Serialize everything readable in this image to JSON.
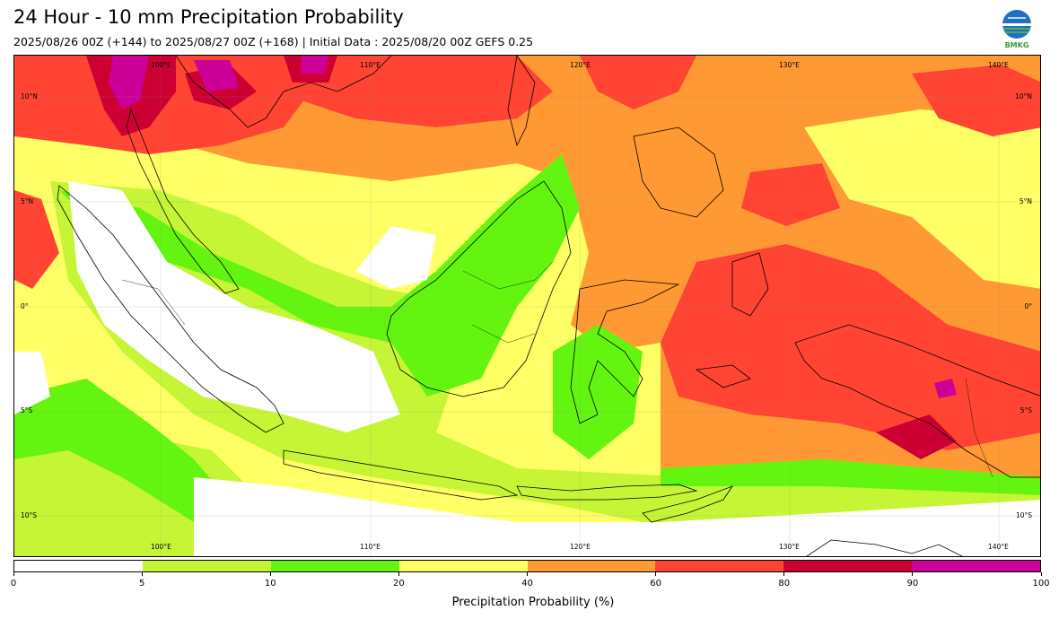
{
  "title": "24 Hour - 10 mm Precipitation Probability",
  "subtitle": "2025/08/26 00Z (+144) to 2025/08/27 00Z (+168) | Initial Data : 2025/08/20 00Z GEFS 0.25",
  "logo": {
    "icon": "bmkg-logo-icon",
    "text": "BMKG"
  },
  "map": {
    "lon_range": [
      95,
      144
    ],
    "lat_range": [
      -12,
      12
    ],
    "lon_labels": [
      "100°E",
      "110°E",
      "120°E",
      "130°E",
      "140°E"
    ],
    "lat_labels": [
      "10°N",
      "5°N",
      "0°",
      "5°S",
      "10°S"
    ]
  },
  "colorbar": {
    "title": "Precipitation Probability (%)",
    "ticks": [
      "0",
      "5",
      "10",
      "20",
      "40",
      "60",
      "80",
      "90",
      "100"
    ],
    "colors": [
      "#ffffff",
      "#c6f536",
      "#63f50f",
      "#ffff66",
      "#ff9933",
      "#ff4433",
      "#cc0033",
      "#cc0099"
    ]
  }
}
